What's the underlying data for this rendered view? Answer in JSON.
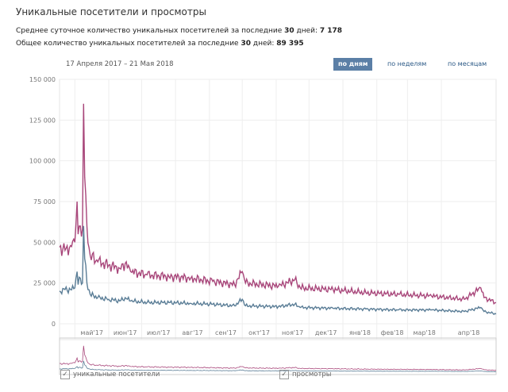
{
  "title": "Уникальные посетители и просмотры",
  "stats": [
    {
      "label": "Среднее суточное количество уникальных посетителей за последние ",
      "days": "30",
      "mid": " дней: ",
      "value": "7 178"
    },
    {
      "label": "Общее количество уникальных посетителей за последние ",
      "days": "30",
      "mid": " дней: ",
      "value": "89 395"
    }
  ],
  "range": "17 Апреля 2017 – 21 Мая 2018",
  "buttons": [
    "по дням",
    "по неделям",
    "по месяцам"
  ],
  "legend": [
    "уникальные посетители",
    "просмотры"
  ],
  "colors": {
    "views": "#a8467a",
    "visitors": "#5a7d96",
    "active": "#5b7fa6"
  },
  "chart_data": {
    "type": "line",
    "ylim": [
      0,
      150000
    ],
    "yticks": [
      "0",
      "25 000",
      "50 000",
      "75 000",
      "100 000",
      "125 000",
      "150 000"
    ],
    "xticks": [
      "май'17",
      "июн'17",
      "июл'17",
      "авг'17",
      "сен'17",
      "окт'17",
      "ноя'17",
      "дек'17",
      "янв'18",
      "фев'18",
      "мар'18",
      "апр'18"
    ],
    "xtick_days": [
      14,
      45,
      75,
      106,
      137,
      167,
      198,
      228,
      259,
      290,
      318,
      349
    ],
    "total_days": 399,
    "series": [
      {
        "name": "просмотры",
        "points": [
          [
            0,
            47000
          ],
          [
            5,
            45000
          ],
          [
            10,
            48000
          ],
          [
            14,
            50000
          ],
          [
            16,
            75000
          ],
          [
            17,
            55000
          ],
          [
            19,
            60000
          ],
          [
            21,
            58000
          ],
          [
            22,
            135000
          ],
          [
            23,
            90000
          ],
          [
            25,
            60000
          ],
          [
            28,
            42000
          ],
          [
            35,
            38000
          ],
          [
            45,
            36000
          ],
          [
            55,
            34000
          ],
          [
            60,
            37000
          ],
          [
            65,
            32000
          ],
          [
            80,
            30000
          ],
          [
            100,
            29000
          ],
          [
            120,
            28000
          ],
          [
            140,
            26000
          ],
          [
            160,
            24000
          ],
          [
            167,
            32000
          ],
          [
            170,
            25000
          ],
          [
            200,
            23000
          ],
          [
            215,
            27000
          ],
          [
            220,
            22000
          ],
          [
            250,
            21000
          ],
          [
            280,
            19000
          ],
          [
            310,
            18000
          ],
          [
            340,
            17000
          ],
          [
            370,
            15000
          ],
          [
            385,
            22000
          ],
          [
            388,
            16000
          ],
          [
            399,
            13000
          ]
        ]
      },
      {
        "name": "уникальные посетители",
        "points": [
          [
            0,
            20000
          ],
          [
            5,
            21000
          ],
          [
            10,
            21000
          ],
          [
            14,
            22000
          ],
          [
            16,
            32000
          ],
          [
            17,
            24000
          ],
          [
            19,
            28000
          ],
          [
            21,
            25000
          ],
          [
            22,
            60000
          ],
          [
            23,
            40000
          ],
          [
            25,
            25000
          ],
          [
            28,
            18000
          ],
          [
            35,
            16000
          ],
          [
            45,
            15000
          ],
          [
            55,
            14000
          ],
          [
            60,
            16000
          ],
          [
            65,
            14000
          ],
          [
            80,
            13000
          ],
          [
            100,
            13000
          ],
          [
            120,
            12500
          ],
          [
            140,
            12000
          ],
          [
            160,
            11000
          ],
          [
            167,
            15000
          ],
          [
            170,
            11000
          ],
          [
            200,
            10500
          ],
          [
            215,
            12000
          ],
          [
            220,
            10000
          ],
          [
            250,
            9500
          ],
          [
            280,
            9000
          ],
          [
            310,
            8500
          ],
          [
            340,
            8500
          ],
          [
            370,
            7500
          ],
          [
            385,
            10000
          ],
          [
            388,
            7500
          ],
          [
            399,
            6000
          ]
        ]
      }
    ]
  }
}
